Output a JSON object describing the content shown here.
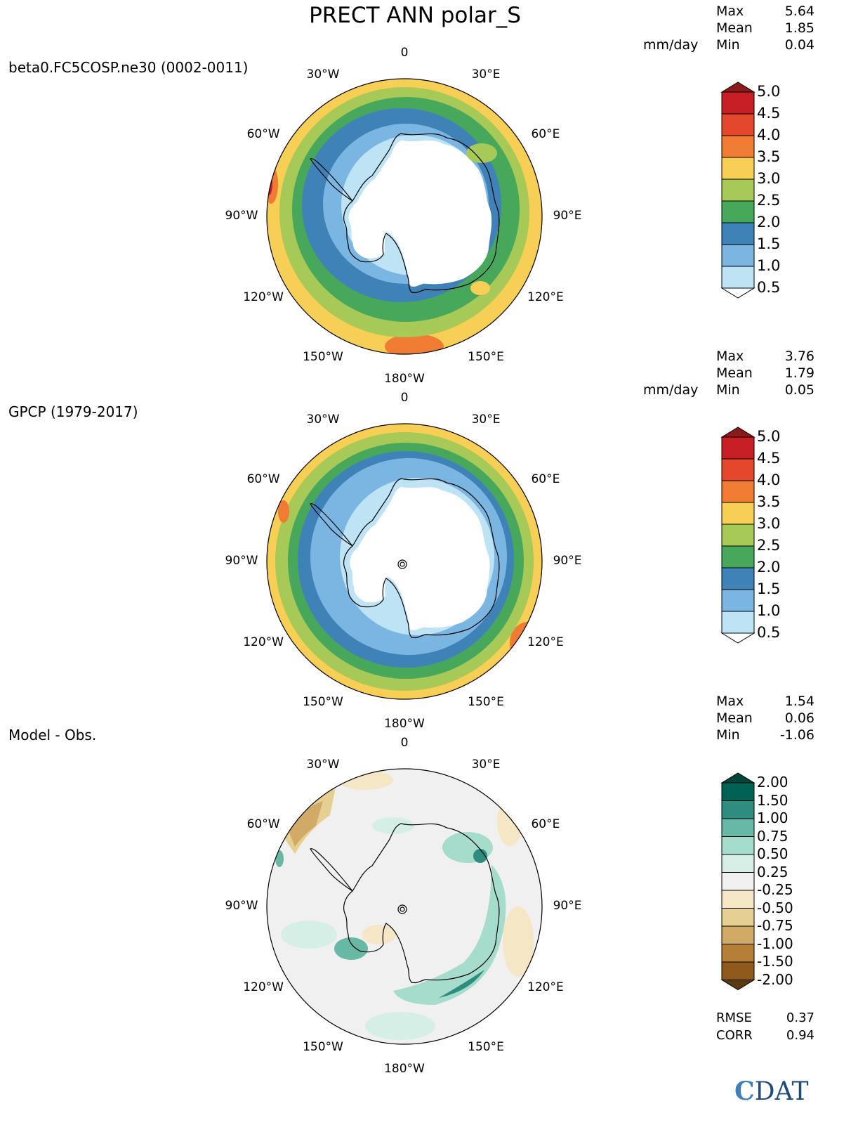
{
  "title": "PRECT ANN polar_S",
  "units": "mm/day",
  "panels": [
    {
      "label": "beta0.FC5COSP.ne30 (0002-0011)",
      "stats": {
        "max_label": "Max",
        "max": "5.64",
        "mean_label": "Mean",
        "mean": "1.85",
        "min_label": "Min",
        "min": "0.04"
      }
    },
    {
      "label": "GPCP (1979-2017)",
      "stats": {
        "max_label": "Max",
        "max": "3.76",
        "mean_label": "Mean",
        "mean": "1.79",
        "min_label": "Min",
        "min": "0.05"
      }
    },
    {
      "label": "Model - Obs.",
      "stats": {
        "max_label": "Max",
        "max": "1.54",
        "mean_label": "Mean",
        "mean": "0.06",
        "min_label": "Min",
        "min": "-1.06"
      }
    }
  ],
  "lon_labels": [
    "0",
    "30°E",
    "60°E",
    "90°E",
    "120°E",
    "150°E",
    "180°W",
    "150°W",
    "120°W",
    "90°W",
    "60°W",
    "30°W"
  ],
  "colorbar_precip": {
    "ticks": [
      "5.0",
      "4.5",
      "4.0",
      "3.5",
      "3.0",
      "2.5",
      "2.0",
      "1.5",
      "1.0",
      "0.5"
    ],
    "colors": [
      "#8b1a1a",
      "#c71f25",
      "#e4472b",
      "#f07c33",
      "#f7cf55",
      "#a7c957",
      "#47a85c",
      "#3f82b7",
      "#7ab6e1",
      "#bde3f5",
      "#ffffff"
    ]
  },
  "colorbar_diff": {
    "ticks": [
      "2.00",
      "1.50",
      "1.00",
      "0.75",
      "0.50",
      "0.25",
      "-0.25",
      "-0.50",
      "-0.75",
      "-1.00",
      "-1.50",
      "-2.00"
    ],
    "colors": [
      "#00453a",
      "#006254",
      "#2e8d7f",
      "#68b8a6",
      "#a5dccb",
      "#d6efe6",
      "#f0f0f0",
      "#f5e6c6",
      "#e6cf93",
      "#d1ab66",
      "#b67f38",
      "#8f5a1b",
      "#5a3a0e"
    ]
  },
  "footer": {
    "rmse_label": "RMSE",
    "rmse": "0.37",
    "corr_label": "CORR",
    "corr": "0.94"
  },
  "logo_text": "CDAT",
  "chart_data": [
    {
      "type": "heatmap",
      "title": "beta0.FC5COSP.ne30 (0002-0011)",
      "projection": "south polar stereographic",
      "units": "mm/day",
      "max": 5.64,
      "mean": 1.85,
      "min": 0.04,
      "levels": [
        0.5,
        1.0,
        1.5,
        2.0,
        2.5,
        3.0,
        3.5,
        4.0,
        4.5,
        5.0
      ]
    },
    {
      "type": "heatmap",
      "title": "GPCP (1979-2017)",
      "projection": "south polar stereographic",
      "units": "mm/day",
      "max": 3.76,
      "mean": 1.79,
      "min": 0.05,
      "levels": [
        0.5,
        1.0,
        1.5,
        2.0,
        2.5,
        3.0,
        3.5,
        4.0,
        4.5,
        5.0
      ]
    },
    {
      "type": "heatmap",
      "title": "Model - Obs.",
      "projection": "south polar stereographic",
      "max": 1.54,
      "mean": 0.06,
      "min": -1.06,
      "rmse": 0.37,
      "corr": 0.94,
      "levels": [
        -2.0,
        -1.5,
        -1.0,
        -0.75,
        -0.5,
        -0.25,
        0.25,
        0.5,
        0.75,
        1.0,
        1.5,
        2.0
      ]
    }
  ]
}
